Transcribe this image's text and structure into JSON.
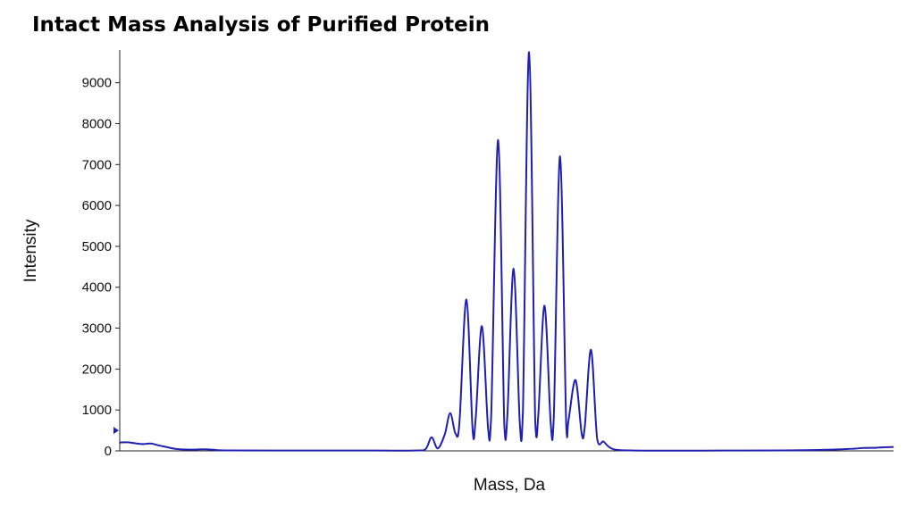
{
  "chart_data": {
    "type": "line",
    "title": "Intact Mass Analysis of Purified Protein",
    "xlabel": "Mass, Da",
    "ylabel": "Intensity",
    "ylim": [
      0,
      9800
    ],
    "yticks": [
      0,
      1000,
      2000,
      3000,
      4000,
      5000,
      6000,
      7000,
      8000,
      9000
    ],
    "xlim": [
      0,
      1000
    ],
    "grid": false,
    "series": [
      {
        "color": "#1f1fb4",
        "points": [
          [
            0,
            205
          ],
          [
            10,
            210
          ],
          [
            20,
            185
          ],
          [
            30,
            165
          ],
          [
            40,
            180
          ],
          [
            50,
            135
          ],
          [
            60,
            95
          ],
          [
            70,
            55
          ],
          [
            80,
            35
          ],
          [
            95,
            30
          ],
          [
            110,
            40
          ],
          [
            125,
            20
          ],
          [
            140,
            12
          ],
          [
            200,
            8
          ],
          [
            300,
            8
          ],
          [
            380,
            8
          ],
          [
            395,
            40
          ],
          [
            403,
            330
          ],
          [
            411,
            60
          ],
          [
            420,
            400
          ],
          [
            427,
            920
          ],
          [
            434,
            420
          ],
          [
            439,
            700
          ],
          [
            448,
            3700
          ],
          [
            456,
            520
          ],
          [
            460,
            800
          ],
          [
            468,
            3050
          ],
          [
            476,
            560
          ],
          [
            480,
            850
          ],
          [
            489,
            7600
          ],
          [
            497,
            620
          ],
          [
            501,
            900
          ],
          [
            509,
            4450
          ],
          [
            517,
            680
          ],
          [
            521,
            950
          ],
          [
            529,
            9750
          ],
          [
            537,
            700
          ],
          [
            541,
            900
          ],
          [
            549,
            3550
          ],
          [
            557,
            650
          ],
          [
            561,
            850
          ],
          [
            569,
            7200
          ],
          [
            577,
            600
          ],
          [
            580,
            750
          ],
          [
            589,
            1730
          ],
          [
            597,
            420
          ],
          [
            601,
            600
          ],
          [
            609,
            2470
          ],
          [
            617,
            300
          ],
          [
            625,
            230
          ],
          [
            632,
            100
          ],
          [
            640,
            30
          ],
          [
            660,
            10
          ],
          [
            700,
            5
          ],
          [
            780,
            8
          ],
          [
            860,
            10
          ],
          [
            920,
            30
          ],
          [
            950,
            55
          ],
          [
            960,
            70
          ],
          [
            975,
            75
          ],
          [
            990,
            90
          ],
          [
            1000,
            95
          ]
        ]
      }
    ]
  }
}
